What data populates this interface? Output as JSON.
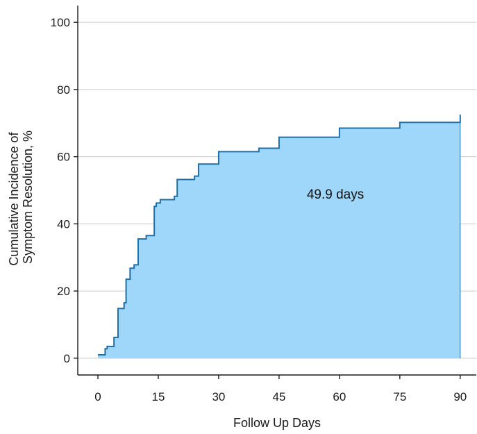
{
  "chart_data": {
    "type": "area",
    "step": true,
    "xlabel": "Follow Up Days",
    "ylabel_lines": [
      "Cumulative Incidence of",
      "Symptom Resolution, %"
    ],
    "xlim": [
      -5,
      94
    ],
    "ylim": [
      -5,
      105
    ],
    "x_ticks": [
      0,
      15,
      30,
      45,
      60,
      75,
      90
    ],
    "y_ticks": [
      0,
      20,
      40,
      60,
      80,
      100
    ],
    "grid": "horizontal",
    "fill_color": "#9fd7fb",
    "line_color": "#1f6fa6",
    "annotation": {
      "text": "49.9 days",
      "x": 59,
      "y": 49
    },
    "x": [
      0,
      1.8,
      2.3,
      3,
      4,
      5,
      5.5,
      6.5,
      7,
      8,
      9,
      10,
      12,
      14,
      14.5,
      15.5,
      18,
      19,
      19.7,
      23,
      24,
      25,
      30,
      31,
      40,
      45,
      60,
      75,
      90
    ],
    "y": [
      1,
      2.8,
      3.5,
      3.5,
      6.2,
      14.8,
      14.8,
      16.5,
      23.5,
      26.8,
      27.8,
      35.5,
      36.5,
      45.2,
      46.2,
      47.2,
      47.2,
      48.2,
      53.2,
      53.2,
      54.2,
      57.8,
      61.5,
      61.5,
      62.5,
      65.8,
      68.5,
      70.2,
      72.5
    ]
  }
}
